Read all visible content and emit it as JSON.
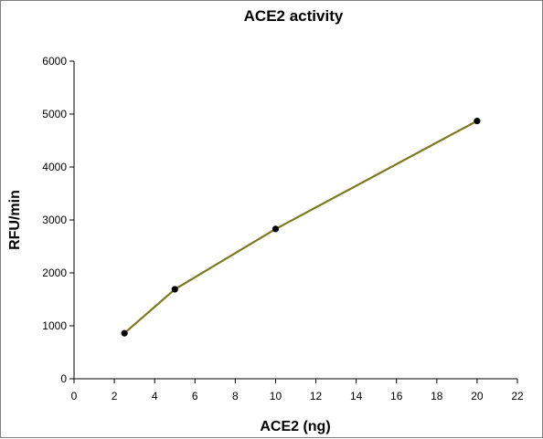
{
  "chart_data": {
    "type": "line",
    "title": "ACE2 activity",
    "xlabel": "ACE2 (ng)",
    "ylabel": "RFU/min",
    "xlim": [
      0,
      22
    ],
    "ylim": [
      0,
      6000
    ],
    "xticks": [
      0,
      2,
      4,
      6,
      8,
      10,
      12,
      14,
      16,
      18,
      20,
      22
    ],
    "yticks": [
      0,
      1000,
      2000,
      3000,
      4000,
      5000,
      6000
    ],
    "grid": false,
    "series": [
      {
        "x": [
          2.5,
          5,
          10,
          20
        ],
        "y": [
          860,
          1690,
          2830,
          4870
        ],
        "line_color": "#7a7a1e",
        "marker_color": "#000000"
      }
    ]
  }
}
